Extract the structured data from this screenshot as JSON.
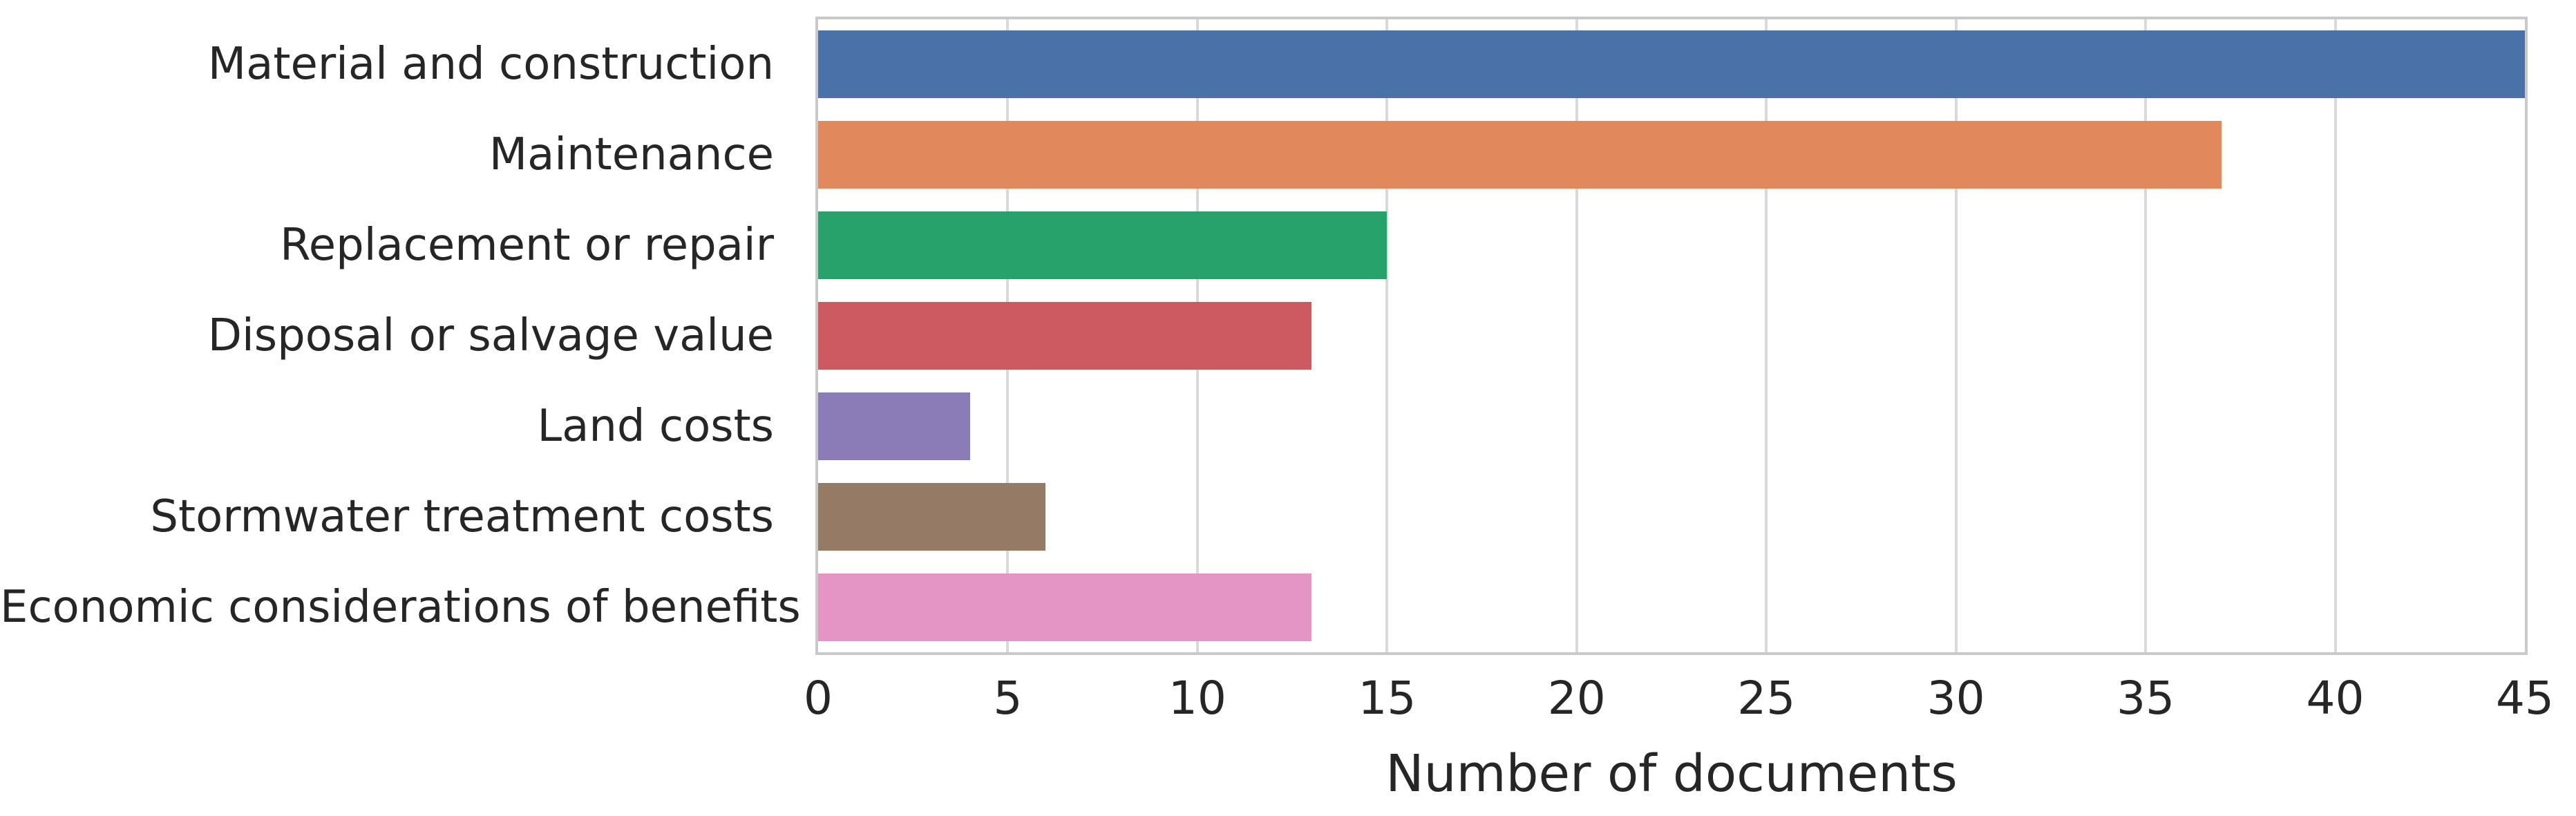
{
  "chart_data": {
    "type": "bar",
    "orientation": "horizontal",
    "categories": [
      "Material and construction",
      "Maintenance",
      "Replacement or repair",
      "Disposal or salvage value",
      "Land costs",
      "Stormwater treatment costs",
      "Economic considerations of benefits"
    ],
    "values": [
      45,
      37,
      15,
      13,
      4,
      6,
      13
    ],
    "bar_colors": [
      "#4a72a9",
      "#e1885c",
      "#28a26b",
      "#cd5a60",
      "#8b7cb8",
      "#957a65",
      "#e494c5"
    ],
    "title": "",
    "xlabel": "Number of documents",
    "ylabel": "",
    "xlim": [
      0,
      45
    ],
    "x_ticks": [
      0,
      5,
      10,
      15,
      20,
      25,
      30,
      35,
      40,
      45
    ],
    "grid": "vertical",
    "gridline_color": "#d9d9d9",
    "spine_color": "#c9c9c9",
    "text_color": "#262626",
    "legend": "none"
  }
}
